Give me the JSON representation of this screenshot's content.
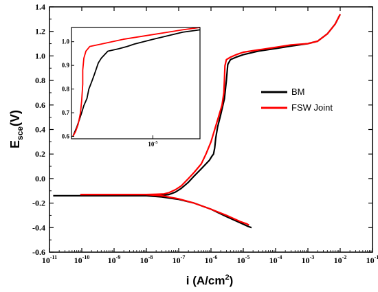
{
  "chart_data": {
    "type": "line",
    "title": "",
    "xlabel": {
      "main": "i",
      "unit_pre": "(A/cm",
      "unit_sup": "2",
      "unit_post": ")"
    },
    "ylabel": {
      "main": "E",
      "sub": "sce",
      "unit": "(V)"
    },
    "x_scale": "log",
    "xlim": [
      1e-11,
      0.1
    ],
    "ylim": [
      -0.6,
      1.4
    ],
    "y_ticks": [
      "-0.6",
      "-0.4",
      "-0.2",
      "0.0",
      "0.2",
      "0.4",
      "0.6",
      "0.8",
      "1.0",
      "1.2",
      "1.4"
    ],
    "x_ticks": [
      {
        "base": "10",
        "exp": "-11",
        "value": 1e-11
      },
      {
        "base": "10",
        "exp": "-10",
        "value": 1e-10
      },
      {
        "base": "10",
        "exp": "-9",
        "value": 1e-09
      },
      {
        "base": "10",
        "exp": "-8",
        "value": 1e-08
      },
      {
        "base": "10",
        "exp": "-7",
        "value": 1e-07
      },
      {
        "base": "10",
        "exp": "-6",
        "value": 1e-06
      },
      {
        "base": "10",
        "exp": "-5",
        "value": 1e-05
      },
      {
        "base": "10",
        "exp": "-4",
        "value": 0.0001
      },
      {
        "base": "10",
        "exp": "-3",
        "value": 0.001
      },
      {
        "base": "10",
        "exp": "-2",
        "value": 0.01
      },
      {
        "base": "10",
        "exp": "-1",
        "value": 0.1
      }
    ],
    "grid": false,
    "legend_position": "right",
    "series": [
      {
        "name": "BM",
        "color": "#000000",
        "points": [
          [
            1.3e-11,
            -0.14
          ],
          [
            1e-10,
            -0.14
          ],
          [
            1e-09,
            -0.14
          ],
          [
            1e-08,
            -0.14
          ],
          [
            2e-08,
            -0.138
          ],
          [
            3.5e-08,
            -0.135
          ],
          [
            5e-08,
            -0.13
          ],
          [
            8e-08,
            -0.11
          ],
          [
            1.2e-07,
            -0.08
          ],
          [
            2e-07,
            -0.03
          ],
          [
            3e-07,
            0.02
          ],
          [
            5e-07,
            0.08
          ],
          [
            7e-07,
            0.12
          ],
          [
            9e-07,
            0.15
          ],
          [
            1.05e-06,
            0.18
          ],
          [
            1.2e-06,
            0.2
          ],
          [
            1.3e-06,
            0.25
          ],
          [
            1.4e-06,
            0.33
          ],
          [
            1.6e-06,
            0.42
          ],
          [
            2e-06,
            0.52
          ],
          [
            2.6e-06,
            0.65
          ],
          [
            3e-06,
            0.8
          ],
          [
            3.3e-06,
            0.93
          ],
          [
            4e-06,
            0.97
          ],
          [
            6e-06,
            0.99
          ],
          [
            1e-05,
            1.01
          ],
          [
            3e-05,
            1.04
          ],
          [
            0.0001,
            1.06
          ],
          [
            0.0003,
            1.08
          ],
          [
            0.001,
            1.1
          ],
          [
            0.002,
            1.12
          ],
          [
            0.004,
            1.18
          ],
          [
            0.007,
            1.26
          ],
          [
            0.01,
            1.34
          ]
        ],
        "cathodic": [
          [
            1e-08,
            -0.14
          ],
          [
            3e-08,
            -0.15
          ],
          [
            1e-07,
            -0.17
          ],
          [
            3e-07,
            -0.2
          ],
          [
            1e-06,
            -0.25
          ],
          [
            3e-06,
            -0.31
          ],
          [
            8e-06,
            -0.36
          ],
          [
            1.4e-05,
            -0.39
          ],
          [
            1.8e-05,
            -0.4
          ]
        ]
      },
      {
        "name": "FSW Joint",
        "color": "#ff0000",
        "points": [
          [
            9e-11,
            -0.13
          ],
          [
            1e-09,
            -0.13
          ],
          [
            1e-08,
            -0.13
          ],
          [
            2e-08,
            -0.128
          ],
          [
            3.5e-08,
            -0.125
          ],
          [
            5e-08,
            -0.115
          ],
          [
            8e-08,
            -0.09
          ],
          [
            1.2e-07,
            -0.06
          ],
          [
            2e-07,
            0.0
          ],
          [
            3e-07,
            0.05
          ],
          [
            5e-07,
            0.12
          ],
          [
            7e-07,
            0.2
          ],
          [
            1e-06,
            0.3
          ],
          [
            1.3e-06,
            0.4
          ],
          [
            1.7e-06,
            0.5
          ],
          [
            2.2e-06,
            0.6
          ],
          [
            2.5e-06,
            0.7
          ],
          [
            2.6e-06,
            0.8
          ],
          [
            2.7e-06,
            0.92
          ],
          [
            3e-06,
            0.97
          ],
          [
            4e-06,
            0.99
          ],
          [
            6e-06,
            1.01
          ],
          [
            1e-05,
            1.03
          ],
          [
            3e-05,
            1.05
          ],
          [
            0.0001,
            1.07
          ],
          [
            0.0003,
            1.09
          ],
          [
            0.001,
            1.1
          ],
          [
            0.002,
            1.12
          ],
          [
            0.004,
            1.18
          ],
          [
            0.007,
            1.26
          ],
          [
            0.01,
            1.34
          ]
        ],
        "cathodic": [
          [
            1e-08,
            -0.13
          ],
          [
            3e-08,
            -0.14
          ],
          [
            1e-07,
            -0.165
          ],
          [
            3e-07,
            -0.2
          ],
          [
            1e-06,
            -0.25
          ],
          [
            3e-06,
            -0.3
          ],
          [
            8e-06,
            -0.35
          ],
          [
            1.3e-05,
            -0.37
          ],
          [
            1.5e-05,
            -0.38
          ]
        ]
      }
    ],
    "inset": {
      "x_scale": "log",
      "xlim": [
        1.5e-06,
        3e-05
      ],
      "ylim": [
        0.59,
        1.06
      ],
      "y_ticks": [
        "0.6",
        "0.7",
        "0.8",
        "0.9",
        "1.0"
      ],
      "x_ticks": [
        {
          "base": "10",
          "exp": "-5",
          "value": 1e-05
        }
      ],
      "series": [
        {
          "name": "BM",
          "color": "#000000",
          "points": [
            [
              1.55e-06,
              0.6
            ],
            [
              1.7e-06,
              0.64
            ],
            [
              1.8e-06,
              0.67
            ],
            [
              1.9e-06,
              0.7
            ],
            [
              2e-06,
              0.73
            ],
            [
              2.15e-06,
              0.76
            ],
            [
              2.25e-06,
              0.8
            ],
            [
              2.35e-06,
              0.82
            ],
            [
              2.45e-06,
              0.84
            ],
            [
              2.55e-06,
              0.86
            ],
            [
              2.65e-06,
              0.88
            ],
            [
              2.8e-06,
              0.91
            ],
            [
              3e-06,
              0.93
            ],
            [
              3.5e-06,
              0.96
            ],
            [
              4.5e-06,
              0.97
            ],
            [
              5.5e-06,
              0.98
            ],
            [
              6.5e-06,
              0.99
            ],
            [
              1e-05,
              1.01
            ],
            [
              2e-05,
              1.04
            ],
            [
              3e-05,
              1.05
            ]
          ]
        },
        {
          "name": "FSW Joint",
          "color": "#ff0000",
          "points": [
            [
              1.55e-06,
              0.6
            ],
            [
              1.65e-06,
              0.62
            ],
            [
              1.75e-06,
              0.65
            ],
            [
              1.85e-06,
              0.7
            ],
            [
              1.9e-06,
              0.75
            ],
            [
              1.95e-06,
              0.82
            ],
            [
              1.95e-06,
              0.88
            ],
            [
              2e-06,
              0.93
            ],
            [
              2.1e-06,
              0.96
            ],
            [
              2.3e-06,
              0.98
            ],
            [
              3e-06,
              0.99
            ],
            [
              5e-06,
              1.01
            ],
            [
              1e-05,
              1.03
            ],
            [
              2e-05,
              1.05
            ],
            [
              3e-05,
              1.06
            ]
          ]
        }
      ]
    }
  }
}
